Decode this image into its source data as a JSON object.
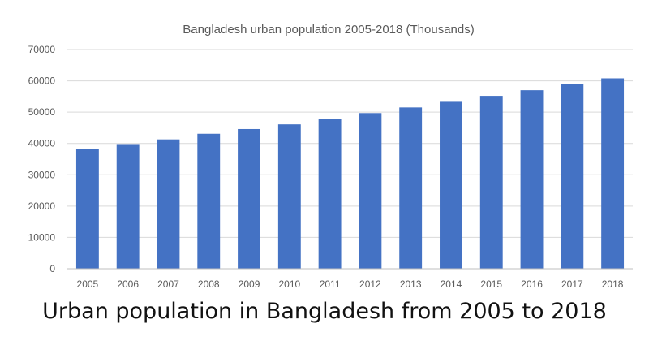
{
  "chart_data": {
    "type": "bar",
    "title": "Bangladesh urban population 2005-2018 (Thousands)",
    "categories": [
      "2005",
      "2006",
      "2007",
      "2008",
      "2009",
      "2010",
      "2011",
      "2012",
      "2013",
      "2014",
      "2015",
      "2016",
      "2017",
      "2018"
    ],
    "values": [
      38200,
      39800,
      41300,
      43100,
      44600,
      46100,
      47900,
      49700,
      51500,
      53300,
      55200,
      57000,
      59000,
      60800
    ],
    "ylim": [
      0,
      70000
    ],
    "yticks": [
      0,
      10000,
      20000,
      30000,
      40000,
      50000,
      60000,
      70000
    ],
    "grid": true,
    "legend": "none",
    "bar_color": "#4472C4",
    "grid_color": "#D9D9D9"
  },
  "caption": "Urban population in Bangladesh from 2005 to 2018"
}
